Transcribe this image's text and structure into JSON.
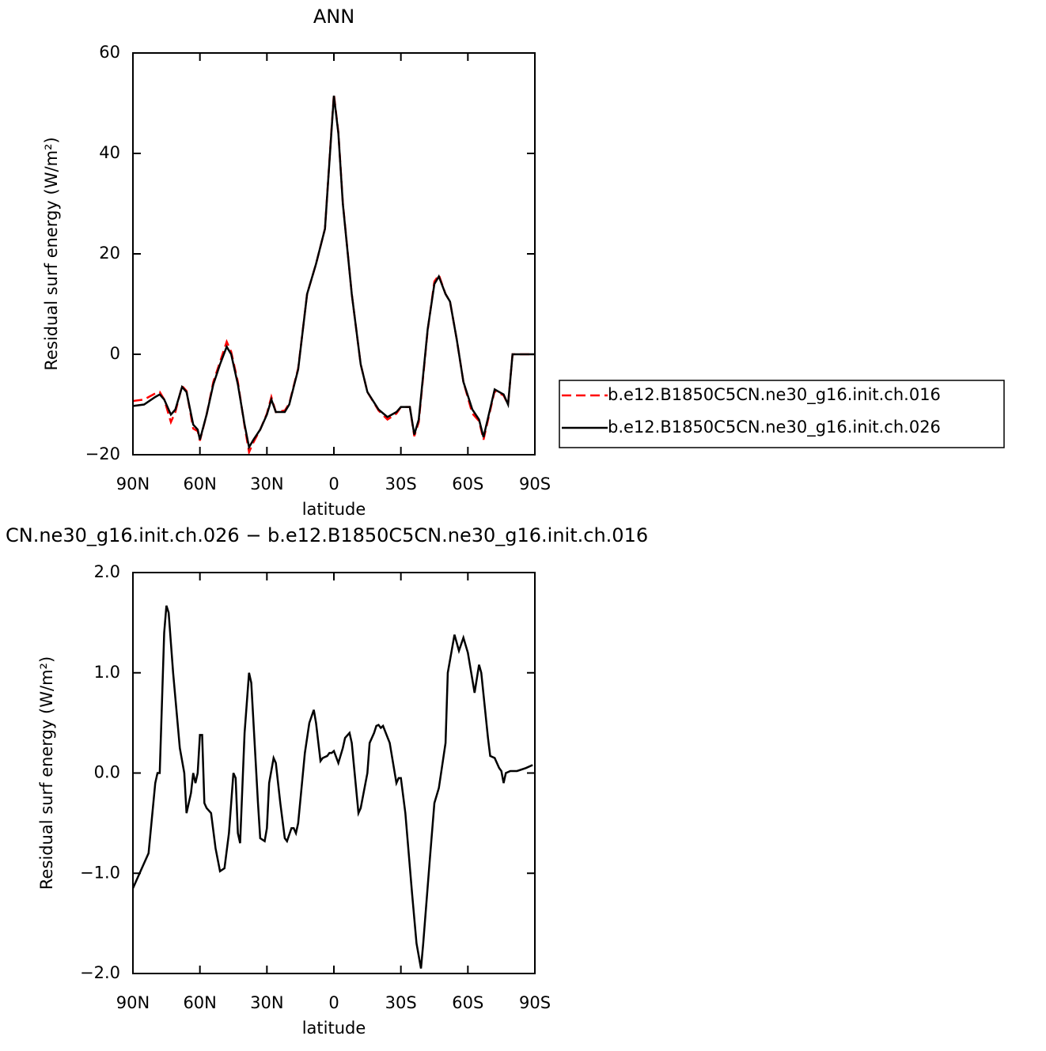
{
  "chart_data": [
    {
      "type": "line",
      "title": "ANN",
      "x_label": "latitude",
      "y_label": "Residual surf energy (W/m²)",
      "xlim": [
        90,
        -90
      ],
      "xticks": [
        {
          "value": 90,
          "label": "90N"
        },
        {
          "value": 60,
          "label": "60N"
        },
        {
          "value": 30,
          "label": "30N"
        },
        0,
        {
          "value": -30,
          "label": "30S"
        },
        {
          "value": -60,
          "label": "60S"
        },
        {
          "value": -90,
          "label": "90S"
        }
      ],
      "ylim": [
        -20,
        60
      ],
      "yticks": [
        60,
        40,
        20,
        0,
        {
          "value": -20,
          "label": "−20"
        }
      ],
      "legend": "right",
      "x": [
        90,
        85,
        80,
        78,
        76,
        73,
        71,
        68,
        66,
        63,
        61,
        60,
        57,
        54,
        51,
        48,
        46,
        43,
        40,
        38,
        36,
        33,
        30,
        28,
        26,
        22,
        20,
        16,
        12,
        8,
        4,
        1,
        0,
        -2,
        -4,
        -8,
        -12,
        -15,
        -20,
        -24,
        -28,
        -30,
        -34,
        -36,
        -38,
        -42,
        -45,
        -47,
        -50,
        -52,
        -55,
        -58,
        -62,
        -65,
        -67,
        -72,
        -76,
        -78,
        -80,
        -85,
        -90
      ],
      "series": [
        {
          "name": "b.e12.B1850C5CN.ne30_g16.init.ch.016",
          "color": "#ff0000",
          "line_style": "dashed",
          "values": [
            -9.3,
            -9,
            -7.8,
            -7.5,
            -9,
            -13.5,
            -11.5,
            -6.3,
            -7.3,
            -14.8,
            -15.3,
            -17.2,
            -12,
            -5.5,
            -1.5,
            2.5,
            0.5,
            -5.5,
            -14.3,
            -19.5,
            -17.5,
            -15,
            -11.8,
            -8.5,
            -11.5,
            -11.2,
            -9.8,
            -2.8,
            12,
            18,
            25,
            45.3,
            51.8,
            44.2,
            30.2,
            12,
            -2,
            -7.5,
            -11.2,
            -13,
            -11.8,
            -10.5,
            -10.5,
            -16.3,
            -13.5,
            4.8,
            14.5,
            15.8,
            12,
            10.5,
            3,
            -5.5,
            -11.8,
            -13.3,
            -17,
            -7.3,
            -8.2,
            -10,
            0,
            0,
            0
          ]
        },
        {
          "name": "b.e12.B1850C5CN.ne30_g16.init.ch.026",
          "color": "#000000",
          "line_style": "solid",
          "values": [
            -10.3,
            -10,
            -8.5,
            -8,
            -9,
            -12,
            -11,
            -6.5,
            -7.5,
            -14,
            -15,
            -17,
            -12,
            -6,
            -2,
            1.5,
            0,
            -6,
            -14,
            -18.5,
            -17,
            -15,
            -12,
            -9,
            -11.5,
            -11.5,
            -10,
            -3,
            12,
            18,
            25,
            45,
            51.5,
            44,
            30,
            12,
            -2,
            -7.5,
            -11,
            -12.5,
            -11.5,
            -10.5,
            -10.5,
            -16,
            -13,
            5,
            14,
            15.5,
            12,
            10.5,
            3,
            -5.5,
            -11,
            -13,
            -16.5,
            -7,
            -8,
            -10,
            0,
            0,
            0
          ]
        }
      ]
    },
    {
      "type": "line",
      "title": "CN.ne30_g16.init.ch.026 − b.e12.B1850C5CN.ne30_g16.init.ch.016",
      "x_label": "latitude",
      "y_label": "Residual surf energy (W/m²)",
      "xlim": [
        90,
        -90
      ],
      "xticks": [
        {
          "value": 90,
          "label": "90N"
        },
        {
          "value": 60,
          "label": "60N"
        },
        {
          "value": 30,
          "label": "30N"
        },
        0,
        {
          "value": -30,
          "label": "30S"
        },
        {
          "value": -60,
          "label": "60S"
        },
        {
          "value": -90,
          "label": "90S"
        }
      ],
      "ylim": [
        -2,
        2
      ],
      "yticks": [
        {
          "value": 2,
          "label": "2.0"
        },
        {
          "value": 1,
          "label": "1.0"
        },
        {
          "value": 0,
          "label": "0.0"
        },
        {
          "value": -1,
          "label": "−1.0"
        },
        {
          "value": -2,
          "label": "−2.0"
        }
      ],
      "color": "#000000",
      "x": [
        90,
        86,
        83,
        80,
        79,
        78,
        76,
        75,
        74,
        72,
        70,
        69,
        67,
        66,
        64,
        63,
        62,
        61,
        60,
        59,
        58,
        57,
        55,
        53,
        51,
        49,
        47,
        45,
        44,
        43,
        42,
        40,
        38,
        37,
        34,
        33,
        31,
        30,
        29,
        27,
        26,
        24,
        22,
        21,
        19,
        18,
        17,
        16,
        13,
        11,
        9,
        8,
        6,
        5,
        3,
        2,
        1,
        0,
        -2,
        -4,
        -5,
        -7,
        -8,
        -11,
        -12,
        -15,
        -16,
        -18,
        -19,
        -20,
        -21,
        -22,
        -25,
        -28,
        -29,
        -30,
        -32,
        -35,
        -37,
        -39,
        -40,
        -43,
        -45,
        -47,
        -50,
        -51,
        -54,
        -56,
        -58,
        -60,
        -63,
        -65,
        -66,
        -69,
        -70,
        -72,
        -74,
        -75,
        -76,
        -77,
        -79,
        -82,
        -86,
        -89
      ],
      "values": [
        -1.15,
        -0.95,
        -0.8,
        -0.1,
        0,
        0,
        1.4,
        1.67,
        1.6,
        1,
        0.5,
        0.25,
        0,
        -0.4,
        -0.2,
        0,
        -0.1,
        0,
        0.38,
        0.38,
        -0.3,
        -0.35,
        -0.4,
        -0.75,
        -0.98,
        -0.95,
        -0.6,
        0,
        -0.05,
        -0.6,
        -0.7,
        0.4,
        1,
        0.9,
        -0.3,
        -0.65,
        -0.68,
        -0.55,
        -0.1,
        0.15,
        0.1,
        -0.3,
        -0.65,
        -0.68,
        -0.55,
        -0.55,
        -0.6,
        -0.5,
        0.2,
        0.5,
        0.63,
        0.5,
        0.12,
        0.15,
        0.17,
        0.2,
        0.2,
        0.22,
        0.1,
        0.25,
        0.35,
        0.4,
        0.3,
        -0.4,
        -0.35,
        0,
        0.3,
        0.4,
        0.47,
        0.48,
        0.45,
        0.47,
        0.3,
        -0.1,
        -0.05,
        -0.05,
        -0.4,
        -1.2,
        -1.7,
        -1.95,
        -1.7,
        -0.85,
        -0.3,
        -0.15,
        0.3,
        1,
        1.38,
        1.22,
        1.35,
        1.2,
        0.8,
        1.08,
        1,
        0.35,
        0.17,
        0.15,
        0.05,
        0.02,
        -0.1,
        0,
        0.02,
        0.02,
        0.05,
        0.08
      ]
    }
  ]
}
